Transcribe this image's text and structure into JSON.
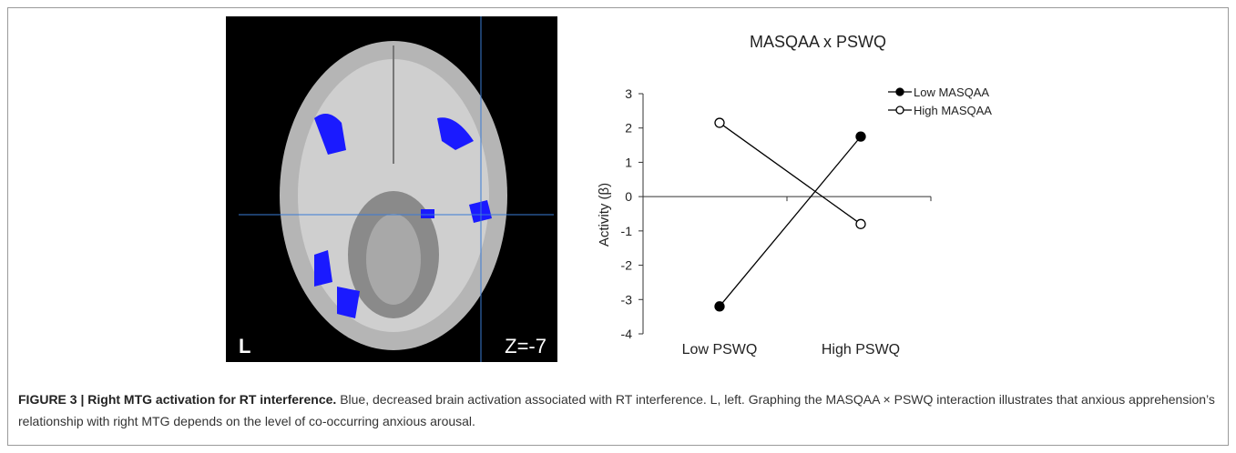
{
  "chart_data": {
    "type": "line",
    "title": "MASQAA x PSWQ",
    "y_label": "Activity (β)",
    "categories": [
      "Low PSWQ",
      "High PSWQ"
    ],
    "series": [
      {
        "name": "Low MASQAA",
        "color": "#000000",
        "marker_fill": "#000000",
        "values": [
          -3.2,
          1.75
        ]
      },
      {
        "name": "High MASQAA",
        "color": "#000000",
        "marker_fill": "#ffffff",
        "values": [
          2.15,
          -0.8
        ]
      }
    ],
    "ylim": [
      -4,
      3
    ],
    "yticks": [
      -4,
      -3,
      -2,
      -1,
      0,
      1,
      2,
      3
    ],
    "legend": "top-right"
  },
  "image": {
    "hemisphere_label": "L",
    "slice_label": "Z=-7"
  },
  "caption": {
    "label": "FIGURE 3 | Right MTG activation for RT interference.",
    "text": "Blue, decreased brain activation associated with RT interference. L, left. Graphing the MASQAA × PSWQ interaction illustrates that anxious apprehension’s relationship with right MTG depends on the level of co-occurring anxious arousal."
  }
}
